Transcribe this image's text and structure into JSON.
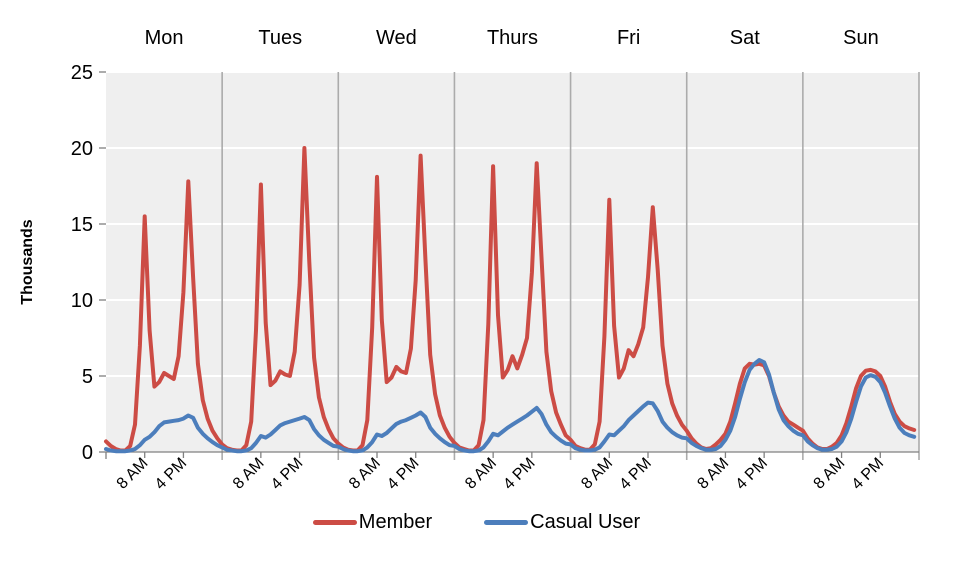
{
  "chart_data": {
    "type": "line",
    "title": "",
    "xlabel": "",
    "ylabel": "Thousands",
    "ylim": [
      0,
      25
    ],
    "yticks": [
      0,
      5,
      10,
      15,
      20,
      25
    ],
    "grid": true,
    "legend_position": "bottom",
    "plot_bg_color": "#EFEFEF",
    "gridline_color": "#FFFFFF",
    "day_separator_color": "#ABABAB",
    "axis_color": "#808080",
    "text_color": "#000000",
    "day_labels": [
      "Mon",
      "Tues",
      "Wed",
      "Thurs",
      "Fri",
      "Sat",
      "Sun"
    ],
    "hours_per_day": 24,
    "hour_ticks": [
      {
        "hour": 8,
        "label": "8 AM"
      },
      {
        "hour": 16,
        "label": "4 PM"
      }
    ],
    "series": [
      {
        "name": "Member",
        "color": "#CC4C45",
        "values_by_day": [
          [
            0.7,
            0.4,
            0.2,
            0.1,
            0.1,
            0.4,
            1.8,
            7.0,
            15.5,
            8.0,
            4.3,
            4.6,
            5.2,
            5.0,
            4.8,
            6.3,
            10.5,
            17.8,
            11.5,
            5.8,
            3.4,
            2.2,
            1.4,
            0.9
          ],
          [
            0.5,
            0.25,
            0.15,
            0.1,
            0.1,
            0.45,
            2.0,
            8.0,
            17.6,
            8.5,
            4.4,
            4.7,
            5.3,
            5.1,
            5.0,
            6.6,
            11.0,
            20.0,
            12.5,
            6.2,
            3.6,
            2.3,
            1.5,
            0.9
          ],
          [
            0.55,
            0.3,
            0.15,
            0.1,
            0.1,
            0.45,
            2.1,
            8.2,
            18.1,
            8.7,
            4.6,
            4.9,
            5.6,
            5.3,
            5.2,
            6.8,
            11.3,
            19.5,
            12.7,
            6.4,
            3.8,
            2.4,
            1.6,
            1.0
          ],
          [
            0.6,
            0.3,
            0.2,
            0.1,
            0.1,
            0.45,
            2.1,
            8.4,
            18.8,
            9.0,
            4.9,
            5.4,
            6.3,
            5.5,
            6.4,
            7.5,
            11.8,
            19.0,
            12.8,
            6.6,
            4.0,
            2.6,
            1.8,
            1.1
          ],
          [
            0.8,
            0.4,
            0.25,
            0.15,
            0.15,
            0.5,
            2.0,
            7.6,
            16.6,
            8.3,
            4.9,
            5.5,
            6.7,
            6.3,
            7.1,
            8.2,
            11.5,
            16.1,
            12.0,
            7.0,
            4.5,
            3.2,
            2.4,
            1.8
          ],
          [
            1.4,
            0.9,
            0.55,
            0.3,
            0.2,
            0.25,
            0.5,
            0.8,
            1.2,
            2.0,
            3.2,
            4.5,
            5.5,
            5.8,
            5.75,
            5.8,
            5.7,
            5.0,
            3.9,
            3.0,
            2.4,
            2.0,
            1.8,
            1.6
          ],
          [
            1.4,
            0.9,
            0.55,
            0.3,
            0.2,
            0.2,
            0.35,
            0.6,
            1.1,
            1.9,
            3.0,
            4.2,
            5.0,
            5.35,
            5.4,
            5.3,
            5.0,
            4.3,
            3.3,
            2.5,
            2.0,
            1.7,
            1.55,
            1.45
          ]
        ]
      },
      {
        "name": "Casual User",
        "color": "#4C7EBC",
        "values_by_day": [
          [
            0.2,
            0.1,
            0.05,
            0.05,
            0.05,
            0.1,
            0.2,
            0.45,
            0.8,
            1.0,
            1.3,
            1.7,
            1.95,
            2.0,
            2.05,
            2.1,
            2.2,
            2.4,
            2.25,
            1.6,
            1.2,
            0.9,
            0.65,
            0.45
          ],
          [
            0.3,
            0.15,
            0.1,
            0.05,
            0.05,
            0.1,
            0.25,
            0.6,
            1.05,
            0.95,
            1.15,
            1.45,
            1.75,
            1.9,
            2.0,
            2.1,
            2.2,
            2.3,
            2.1,
            1.5,
            1.1,
            0.8,
            0.6,
            0.4
          ],
          [
            0.35,
            0.2,
            0.1,
            0.05,
            0.05,
            0.1,
            0.3,
            0.65,
            1.15,
            1.05,
            1.25,
            1.55,
            1.85,
            2.0,
            2.1,
            2.25,
            2.4,
            2.6,
            2.3,
            1.6,
            1.2,
            0.9,
            0.65,
            0.45
          ],
          [
            0.4,
            0.2,
            0.1,
            0.05,
            0.05,
            0.1,
            0.3,
            0.7,
            1.2,
            1.1,
            1.35,
            1.6,
            1.8,
            2.0,
            2.2,
            2.4,
            2.65,
            2.9,
            2.5,
            1.8,
            1.3,
            1.0,
            0.75,
            0.55
          ],
          [
            0.5,
            0.25,
            0.15,
            0.1,
            0.1,
            0.15,
            0.3,
            0.7,
            1.15,
            1.1,
            1.4,
            1.7,
            2.1,
            2.4,
            2.7,
            3.0,
            3.25,
            3.2,
            2.7,
            2.0,
            1.6,
            1.3,
            1.1,
            0.95
          ],
          [
            0.9,
            0.6,
            0.4,
            0.25,
            0.15,
            0.15,
            0.2,
            0.4,
            0.8,
            1.4,
            2.3,
            3.5,
            4.6,
            5.4,
            5.8,
            6.05,
            5.9,
            5.1,
            3.9,
            2.8,
            2.1,
            1.7,
            1.4,
            1.2
          ],
          [
            1.1,
            0.7,
            0.45,
            0.25,
            0.15,
            0.15,
            0.2,
            0.35,
            0.7,
            1.3,
            2.2,
            3.3,
            4.3,
            4.9,
            5.05,
            4.95,
            4.6,
            3.9,
            3.0,
            2.2,
            1.6,
            1.25,
            1.1,
            1.0
          ]
        ]
      }
    ]
  },
  "legend": {
    "items": [
      {
        "label": "Member"
      },
      {
        "label": "Casual User"
      }
    ]
  }
}
